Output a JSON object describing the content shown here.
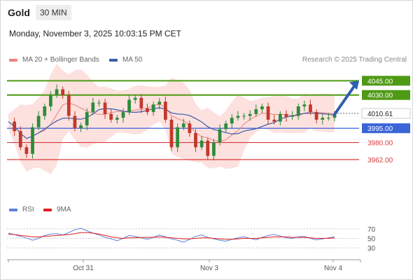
{
  "header": {
    "title": "Gold",
    "timeframe": "30 MIN"
  },
  "datetime": "Monday, November 3, 2025 10:03:15 PM CET",
  "legend": [
    {
      "label": "MA 20 + Bollinger Bands",
      "color": "#f08080"
    },
    {
      "label": "MA 50",
      "color": "#3a5ea8"
    }
  ],
  "copyright": "Research © 2025 Trading Central",
  "chart_data": {
    "type": "candlestick",
    "price_ylim": [
      3920,
      4060
    ],
    "current_price": "4010.61",
    "levels": [
      {
        "label": "4045.00",
        "value": 4045.0,
        "kind": "resistance",
        "color": "#4f9a14"
      },
      {
        "label": "4030.00",
        "value": 4030.0,
        "kind": "resistance",
        "color": "#4f9a14"
      },
      {
        "label": "3995.00",
        "value": 3995.0,
        "kind": "pivot",
        "color": "#3b64d8"
      },
      {
        "label": "3980.00",
        "value": 3980.0,
        "kind": "support",
        "color": "#d83a3a"
      },
      {
        "label": "3962.00",
        "value": 3962.0,
        "kind": "support",
        "color": "#d83a3a"
      }
    ],
    "x_ticks": [
      "Oct 31",
      "Nov 3",
      "Nov 4"
    ],
    "close_path": [
      4002,
      3992,
      3975,
      3968,
      3996,
      4008,
      4018,
      4030,
      4036,
      4030,
      4008,
      3995,
      3998,
      4012,
      4022,
      4022,
      4010,
      4004,
      4006,
      4012,
      4025,
      4027,
      4016,
      4012,
      4020,
      4023,
      4004,
      3975,
      3996,
      4000,
      3990,
      3975,
      3982,
      3966,
      3980,
      3994,
      4000,
      4006,
      4008,
      4008,
      4010,
      4015,
      4018,
      4004,
      4002,
      4010,
      4007,
      4008,
      4018,
      4020,
      4012,
      4004,
      4006,
      4006,
      4010
    ],
    "rsi": {
      "legend": [
        {
          "label": "RSI",
          "color": "#5b7fdc"
        },
        {
          "label": "9MA",
          "color": "#e21e1e"
        }
      ],
      "ylim": [
        20,
        80
      ],
      "ticks": [
        "70",
        "50",
        "30"
      ],
      "tick_values": [
        70,
        50,
        30
      ],
      "rsi_path": [
        61,
        58,
        54,
        51,
        46,
        50,
        56,
        59,
        60,
        57,
        62,
        68,
        71,
        66,
        61,
        57,
        52,
        49,
        45,
        50,
        56,
        54,
        51,
        48,
        52,
        57,
        53,
        49,
        46,
        42,
        48,
        54,
        57,
        52,
        49,
        46,
        44,
        48,
        51,
        53,
        50,
        47,
        52,
        56,
        58,
        55,
        51,
        50,
        53,
        54,
        50,
        47,
        49,
        51,
        53
      ],
      "ma_path": [
        59,
        58,
        56,
        55,
        53,
        53,
        54,
        55,
        56,
        57,
        58,
        60,
        62,
        62,
        61,
        59,
        56,
        53,
        51,
        50,
        51,
        51,
        52,
        52,
        52,
        53,
        52,
        51,
        50,
        49,
        49,
        50,
        51,
        51,
        50,
        49,
        48,
        48,
        49,
        50,
        50,
        50,
        51,
        52,
        53,
        53,
        53,
        52,
        52,
        52,
        51,
        50,
        50,
        50,
        51
      ]
    }
  }
}
